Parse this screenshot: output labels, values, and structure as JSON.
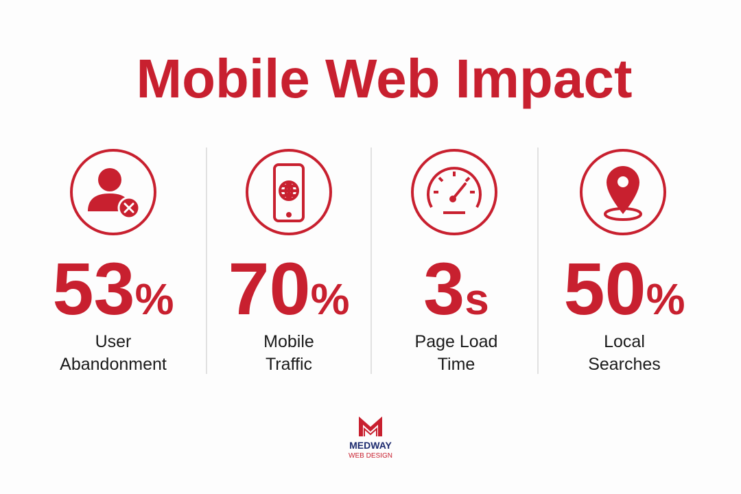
{
  "header": {
    "title": "Mobile Web Impact"
  },
  "stats": [
    {
      "number": "53",
      "unit": "%",
      "label": [
        "User",
        "Abandonment"
      ]
    },
    {
      "number": "70",
      "unit": "%",
      "label": [
        "Mobile",
        "Traffic"
      ]
    },
    {
      "number": "3",
      "unit": "s",
      "label": [
        "Page Load",
        "Time"
      ]
    },
    {
      "number": "50",
      "unit": "%",
      "label": [
        "Local",
        "Searches"
      ]
    }
  ],
  "logo": {
    "name": "MEDWAY",
    "tagline": "WEB DESIGN"
  }
}
